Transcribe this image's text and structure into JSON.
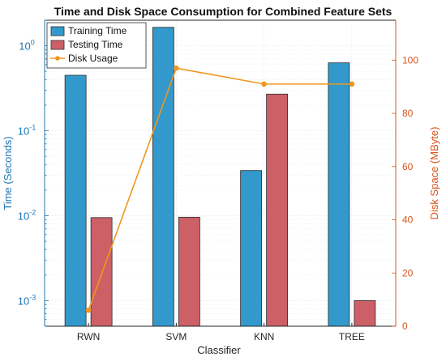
{
  "chart_data": {
    "type": "bar",
    "title": "Time and Disk Space Consumption for Combined Feature Sets",
    "xlabel": "Classifier",
    "ylabel_left": "Time (Seconds)",
    "ylabel_right": "Disk Space (MByte)",
    "categories": [
      "RWN",
      "SVM",
      "KNN",
      "TREE"
    ],
    "left_axis": {
      "scale": "log",
      "ylim": [
        0.0005,
        2
      ],
      "ticks": [
        0.001,
        0.01,
        0.1,
        1
      ],
      "tick_labels": [
        {
          "base": "10",
          "exp": "-3"
        },
        {
          "base": "10",
          "exp": "-2"
        },
        {
          "base": "10",
          "exp": "-1"
        },
        {
          "base": "10",
          "exp": "0"
        }
      ]
    },
    "right_axis": {
      "scale": "linear",
      "ylim": [
        0,
        115
      ],
      "ticks": [
        0,
        20,
        40,
        60,
        80,
        100
      ]
    },
    "series": [
      {
        "name": "Training Time",
        "kind": "bar",
        "axis": "left",
        "color": "#3399cc",
        "values": [
          0.45,
          1.65,
          0.034,
          0.63
        ]
      },
      {
        "name": "Testing Time",
        "kind": "bar",
        "axis": "left",
        "color": "#cc6066",
        "values": [
          0.0095,
          0.0096,
          0.27,
          0.001
        ]
      },
      {
        "name": "Disk Usage",
        "kind": "line",
        "axis": "right",
        "color": "#f0961e",
        "values": [
          6,
          97,
          91,
          91
        ]
      }
    ],
    "grid": true,
    "legend": "top-left",
    "colors": {
      "left_axis": "#1f77b4",
      "right_axis": "#d95319"
    }
  }
}
